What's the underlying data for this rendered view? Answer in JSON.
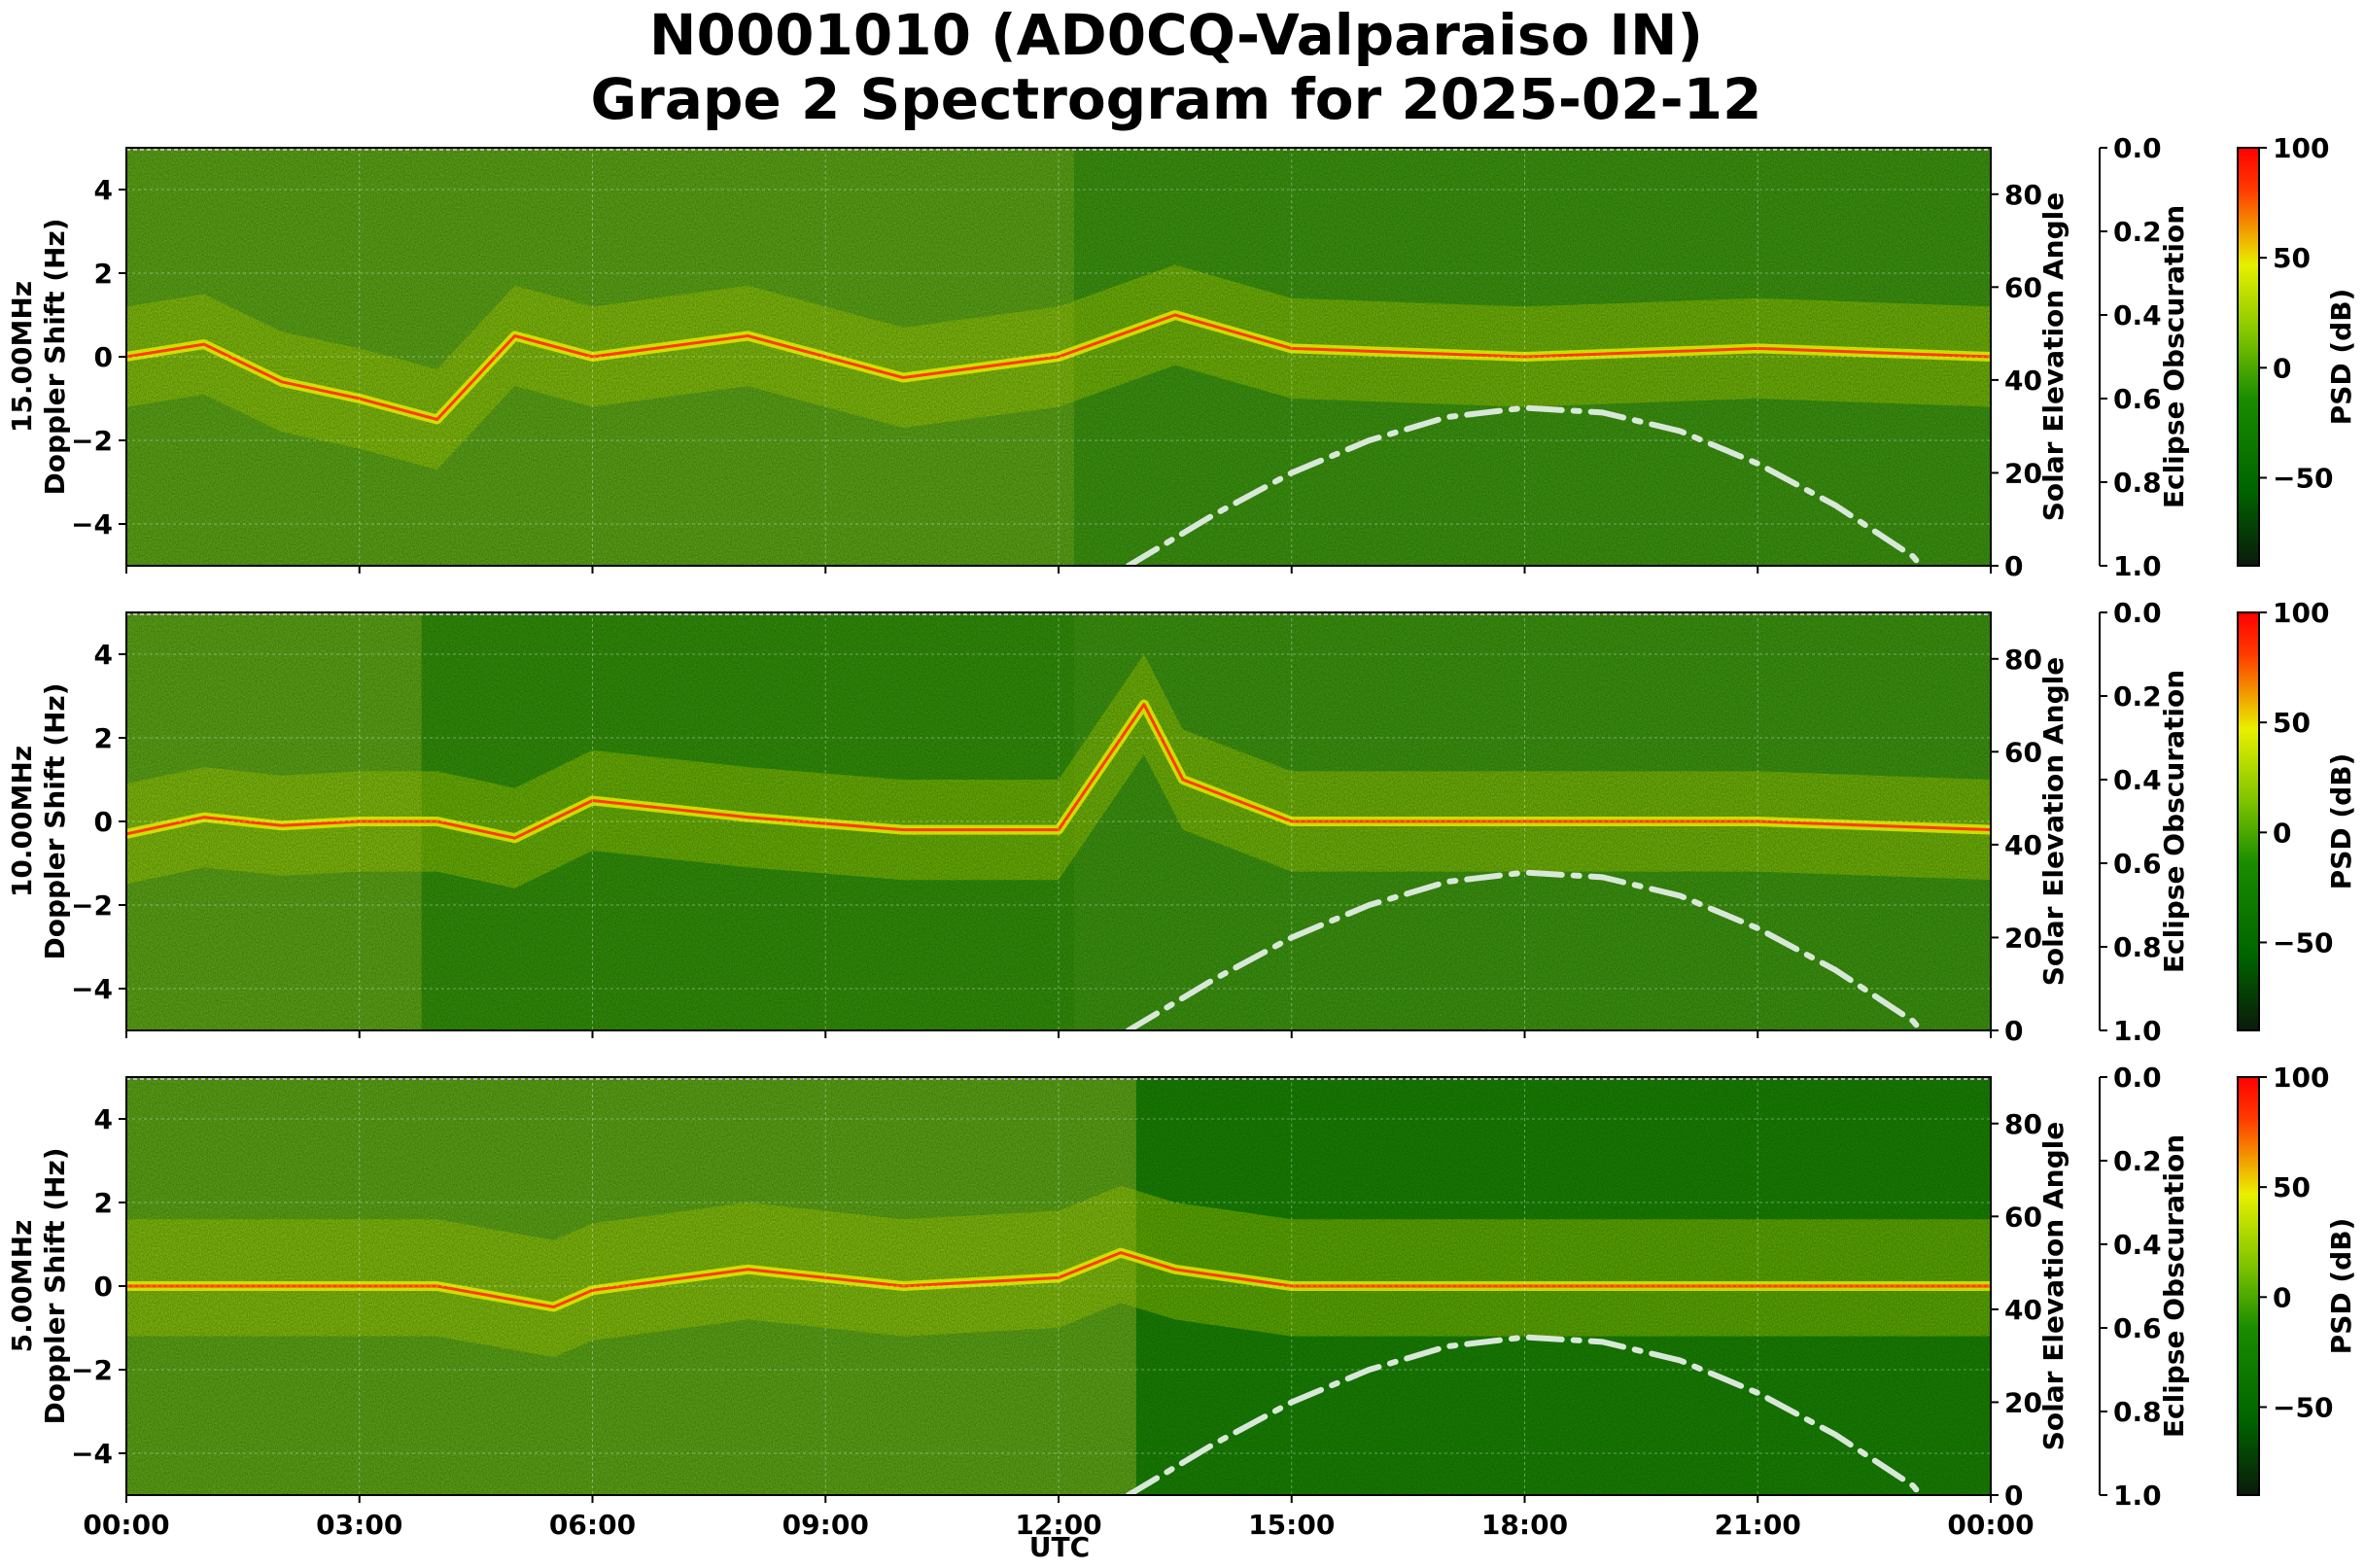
{
  "title": {
    "line1": "N0001010 (AD0CQ-Valparaiso IN)",
    "line2": "Grape 2 Spectrogram for 2025-02-12"
  },
  "colors": {
    "colormap": [
      "#0a1a0a",
      "#006400",
      "#1a8c00",
      "#7fc400",
      "#e8f000",
      "#ff3b00",
      "#ff0000"
    ],
    "solar_curve": "#d8e8d8",
    "background": "#ffffff"
  },
  "x_axis": {
    "label": "UTC",
    "ticks": [
      "00:00",
      "03:00",
      "06:00",
      "09:00",
      "12:00",
      "15:00",
      "18:00",
      "21:00",
      "00:00"
    ]
  },
  "chart_data": [
    {
      "type": "heatmap",
      "panel": "15.00MHz",
      "ylabel_line1": "15.00MHz",
      "ylabel_line2": "Doppler Shift (Hz)",
      "ylim": [
        -5,
        5
      ],
      "yticks": [
        "4",
        "2",
        "0",
        "−2",
        "−4"
      ],
      "right_axis_1": {
        "label": "Solar Elevation Angle",
        "ylim": [
          0,
          90
        ],
        "ticks": [
          "80",
          "60",
          "40",
          "20",
          "0"
        ]
      },
      "right_axis_2": {
        "label": "Eclipse Obscuration",
        "ylim": [
          1.0,
          0.0
        ],
        "ticks": [
          "0.0",
          "0.2",
          "0.4",
          "0.6",
          "0.8",
          "1.0"
        ]
      },
      "colorbar": {
        "label": "PSD (dB)",
        "range": [
          -90,
          100
        ],
        "ticks": [
          "100",
          "50",
          "0",
          "−50"
        ]
      },
      "solar_elevation": {
        "x_hours": [
          12.9,
          14,
          15,
          16,
          17,
          18,
          19,
          20,
          21,
          22,
          23,
          23.1
        ],
        "y_deg": [
          0,
          11,
          20,
          27,
          32,
          34,
          33,
          29,
          22,
          13,
          2,
          0
        ]
      },
      "doppler_trace": {
        "x_hours": [
          0,
          1,
          2,
          3,
          4,
          5,
          6,
          8,
          10,
          12,
          13.5,
          15,
          18,
          21,
          24
        ],
        "y_hz": [
          0.0,
          0.3,
          -0.6,
          -1.0,
          -1.5,
          0.5,
          0.0,
          0.5,
          -0.5,
          0.0,
          1.0,
          0.2,
          0.0,
          0.2,
          0.0
        ]
      }
    },
    {
      "type": "heatmap",
      "panel": "10.00MHz",
      "ylabel_line1": "10.00MHz",
      "ylabel_line2": "Doppler Shift (Hz)",
      "ylim": [
        -5,
        5
      ],
      "yticks": [
        "4",
        "2",
        "0",
        "−2",
        "−4"
      ],
      "right_axis_1": {
        "label": "Solar Elevation Angle",
        "ylim": [
          0,
          90
        ],
        "ticks": [
          "80",
          "60",
          "40",
          "20",
          "0"
        ]
      },
      "right_axis_2": {
        "label": "Eclipse Obscuration",
        "ylim": [
          1.0,
          0.0
        ],
        "ticks": [
          "0.0",
          "0.2",
          "0.4",
          "0.6",
          "0.8",
          "1.0"
        ]
      },
      "colorbar": {
        "label": "PSD (dB)",
        "range": [
          -90,
          100
        ],
        "ticks": [
          "100",
          "50",
          "0",
          "−50"
        ]
      },
      "solar_elevation": {
        "x_hours": [
          12.9,
          14,
          15,
          16,
          17,
          18,
          19,
          20,
          21,
          22,
          23,
          23.1
        ],
        "y_deg": [
          0,
          11,
          20,
          27,
          32,
          34,
          33,
          29,
          22,
          13,
          2,
          0
        ]
      },
      "doppler_trace": {
        "x_hours": [
          0,
          1,
          2,
          3,
          4,
          5,
          6,
          8,
          10,
          12,
          13.1,
          13.6,
          15,
          18,
          21,
          24
        ],
        "y_hz": [
          -0.3,
          0.1,
          -0.1,
          0.0,
          0.0,
          -0.4,
          0.5,
          0.1,
          -0.2,
          -0.2,
          2.8,
          1.0,
          0.0,
          0.0,
          0.0,
          -0.2
        ]
      }
    },
    {
      "type": "heatmap",
      "panel": "5.00MHz",
      "ylabel_line1": "5.00MHz",
      "ylabel_line2": "Doppler Shift (Hz)",
      "ylim": [
        -5,
        5
      ],
      "yticks": [
        "4",
        "2",
        "0",
        "−2",
        "−4"
      ],
      "right_axis_1": {
        "label": "Solar Elevation Angle",
        "ylim": [
          0,
          90
        ],
        "ticks": [
          "80",
          "60",
          "40",
          "20",
          "0"
        ]
      },
      "right_axis_2": {
        "label": "Eclipse Obscuration",
        "ylim": [
          1.0,
          0.0
        ],
        "ticks": [
          "0.0",
          "0.2",
          "0.4",
          "0.6",
          "0.8",
          "1.0"
        ]
      },
      "colorbar": {
        "label": "PSD (dB)",
        "range": [
          -90,
          100
        ],
        "ticks": [
          "100",
          "50",
          "0",
          "−50"
        ]
      },
      "solar_elevation": {
        "x_hours": [
          12.9,
          14,
          15,
          16,
          17,
          18,
          19,
          20,
          21,
          22,
          23,
          23.1
        ],
        "y_deg": [
          0,
          11,
          20,
          27,
          32,
          34,
          33,
          29,
          22,
          13,
          2,
          0
        ]
      },
      "doppler_trace": {
        "x_hours": [
          0,
          2,
          4,
          5.5,
          6,
          8,
          10,
          12,
          12.8,
          13.5,
          15,
          18,
          24
        ],
        "y_hz": [
          0.0,
          0.0,
          0.0,
          -0.5,
          -0.1,
          0.4,
          0.0,
          0.2,
          0.8,
          0.4,
          0.0,
          0.0,
          0.0
        ]
      }
    }
  ]
}
